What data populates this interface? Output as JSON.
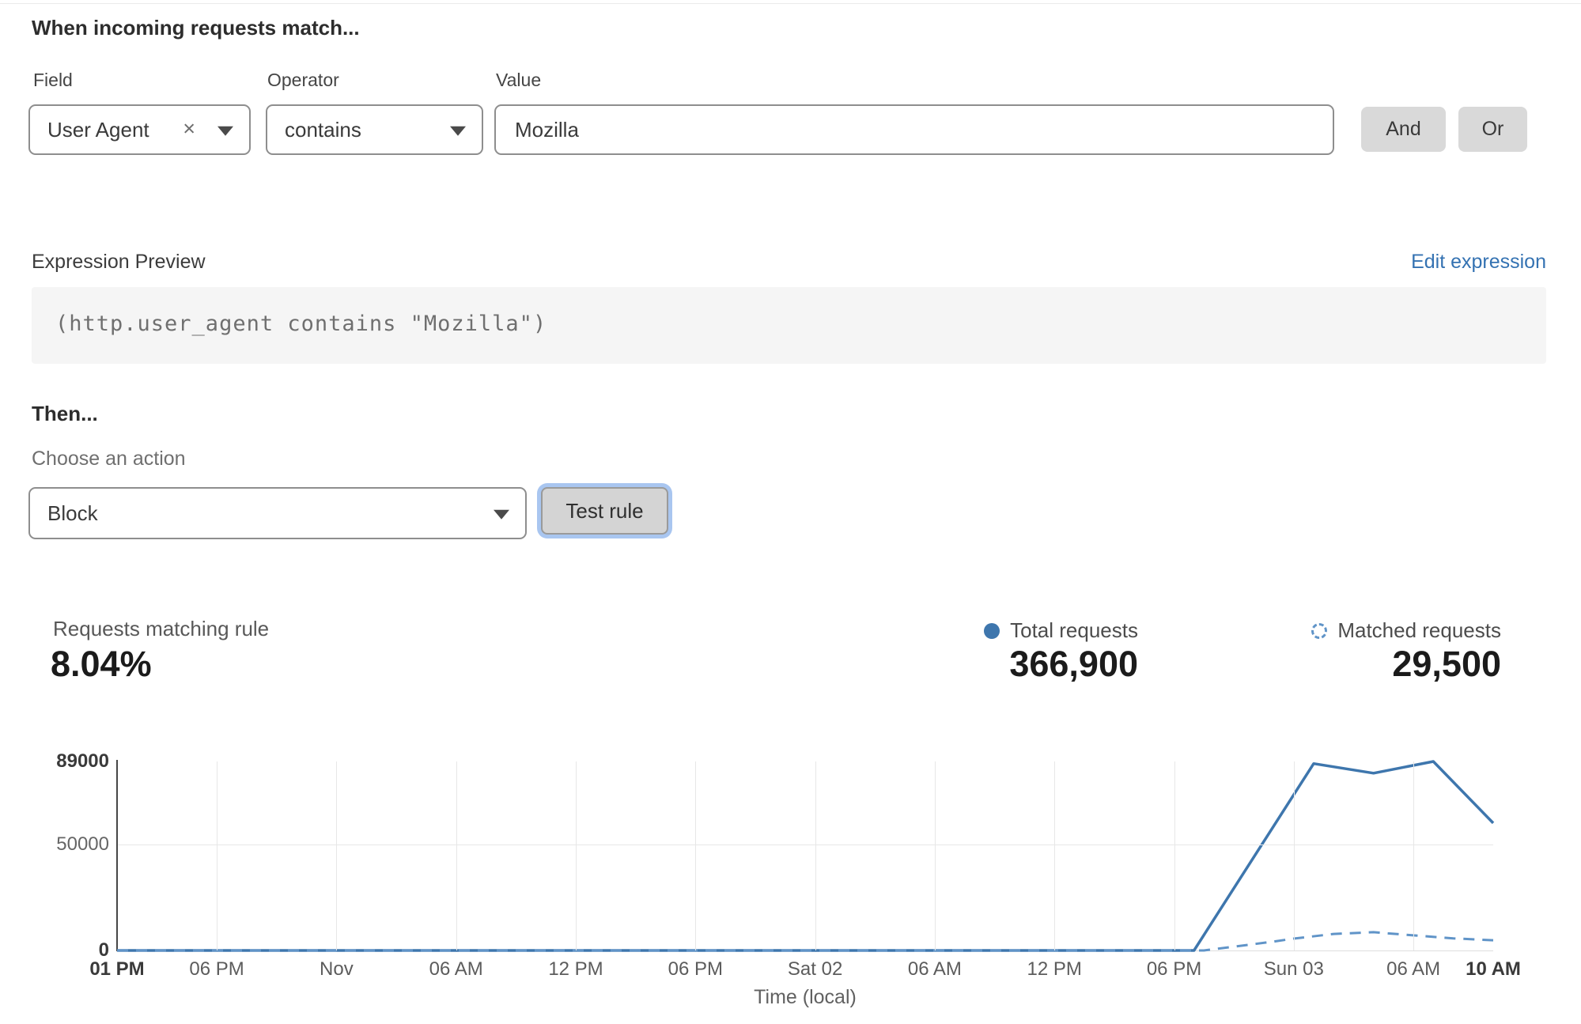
{
  "rule_builder": {
    "title": "When incoming requests match...",
    "field": {
      "label": "Field",
      "value": "User Agent"
    },
    "operator": {
      "label": "Operator",
      "value": "contains"
    },
    "value": {
      "label": "Value",
      "value": "Mozilla"
    },
    "and_label": "And",
    "or_label": "Or"
  },
  "expression_preview": {
    "label": "Expression Preview",
    "edit_link": "Edit expression",
    "expression": "(http.user_agent contains \"Mozilla\")"
  },
  "action": {
    "heading": "Then...",
    "label": "Choose an action",
    "value": "Block",
    "test_button": "Test rule"
  },
  "stats": {
    "match_label": "Requests matching rule",
    "match_value": "8.04%",
    "total": {
      "label": "Total requests",
      "value": "366,900"
    },
    "matched": {
      "label": "Matched requests",
      "value": "29,500"
    }
  },
  "colors": {
    "link_blue": "#3472b2",
    "solid_line": "#3e76ad",
    "dashed_line": "#6094c8",
    "focus_ring": "#a9c6f0"
  },
  "chart_data": {
    "type": "line",
    "title": "",
    "xlabel": "Time (local)",
    "ylabel": "",
    "ylim": [
      0,
      89000
    ],
    "x_span_hours": 69,
    "grid": true,
    "legend_position": "top-right",
    "y_ticks": [
      {
        "label": "89000",
        "value": 89000,
        "bold": true
      },
      {
        "label": "50000",
        "value": 50000,
        "bold": false
      },
      {
        "label": "0",
        "value": 0,
        "bold": true
      }
    ],
    "x_ticks": [
      {
        "label": "01 PM",
        "hour": 0,
        "bold": true
      },
      {
        "label": "06 PM",
        "hour": 5,
        "bold": false
      },
      {
        "label": "Nov",
        "hour": 11,
        "bold": false
      },
      {
        "label": "06 AM",
        "hour": 17,
        "bold": false
      },
      {
        "label": "12 PM",
        "hour": 23,
        "bold": false
      },
      {
        "label": "06 PM",
        "hour": 29,
        "bold": false
      },
      {
        "label": "Sat 02",
        "hour": 35,
        "bold": false
      },
      {
        "label": "06 AM",
        "hour": 41,
        "bold": false
      },
      {
        "label": "12 PM",
        "hour": 47,
        "bold": false
      },
      {
        "label": "06 PM",
        "hour": 53,
        "bold": false
      },
      {
        "label": "Sun 03",
        "hour": 59,
        "bold": false
      },
      {
        "label": "06 AM",
        "hour": 65,
        "bold": false
      },
      {
        "label": "10 AM",
        "hour": 69,
        "bold": true
      }
    ],
    "series": [
      {
        "name": "Total requests",
        "style": "solid",
        "color": "#3e76ad",
        "points": [
          [
            0,
            0
          ],
          [
            10,
            0
          ],
          [
            20,
            0
          ],
          [
            30,
            0
          ],
          [
            40,
            0
          ],
          [
            50,
            0
          ],
          [
            54,
            0
          ],
          [
            60,
            88000
          ],
          [
            63,
            83500
          ],
          [
            66,
            89000
          ],
          [
            69,
            60000
          ]
        ]
      },
      {
        "name": "Matched requests",
        "style": "dashed",
        "color": "#6094c8",
        "points": [
          [
            0,
            0
          ],
          [
            10,
            0
          ],
          [
            20,
            0
          ],
          [
            30,
            0
          ],
          [
            40,
            0
          ],
          [
            50,
            0
          ],
          [
            54.5,
            0
          ],
          [
            56,
            1800
          ],
          [
            58,
            4200
          ],
          [
            59,
            5600
          ],
          [
            61,
            7800
          ],
          [
            63,
            8600
          ],
          [
            65,
            7100
          ],
          [
            67,
            5700
          ],
          [
            69,
            4800
          ]
        ]
      }
    ]
  }
}
